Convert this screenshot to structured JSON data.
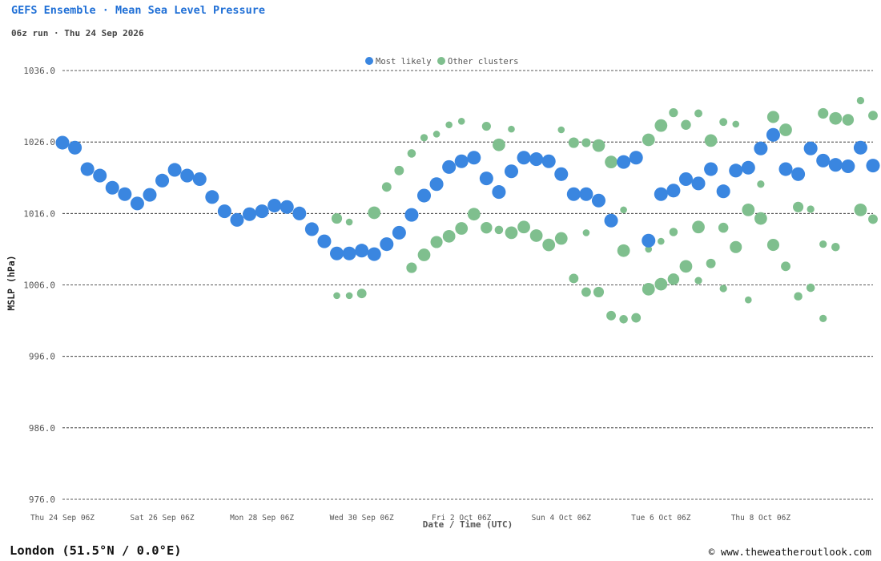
{
  "header": {
    "title": "GEFS Ensemble · Mean Sea Level Pressure",
    "subtitle": "06z run · Thu 24 Sep 2026"
  },
  "footer": {
    "location": "London (51.5°N / 0.0°E)",
    "credit": "© www.theweatheroutlook.com"
  },
  "colors": {
    "most_likely": "#3a86e0",
    "other_clusters": "#7fbf8e",
    "grid": "#222222",
    "axis_text": "#555555"
  },
  "chart_data": {
    "type": "scatter",
    "ylabel": "MSLP (hPa)",
    "xlabel": "Date / Time (UTC)",
    "ylim": [
      976,
      1036
    ],
    "y_ticks": [
      "1036.0",
      "1026.0",
      "1016.0",
      "1006.0",
      "996.0",
      "986.0",
      "976.0"
    ],
    "x_ticks": [
      "Thu 24 Sep 06Z",
      "Sat 26 Sep 06Z",
      "Mon 28 Sep 06Z",
      "Wed 30 Sep 06Z",
      "Fri 2 Oct 06Z",
      "Sun 4 Oct 06Z",
      "Tue 6 Oct 06Z",
      "Thu 8 Oct 06Z"
    ],
    "grid": "horizontal dashed",
    "legend": {
      "position": "top-center",
      "entries": [
        "Most likely",
        "Other clusters"
      ]
    },
    "note": "x values are forecast lead time in hours from Thu 24 Sep 06Z; size is relative cluster weight (0-1)",
    "series": [
      {
        "name": "Most likely",
        "points": [
          [
            0,
            1025.9,
            0.85
          ],
          [
            6,
            1025.2,
            0.85
          ],
          [
            12,
            1022.2,
            0.85
          ],
          [
            18,
            1021.3,
            0.85
          ],
          [
            24,
            1019.6,
            0.85
          ],
          [
            30,
            1018.7,
            0.85
          ],
          [
            36,
            1017.4,
            0.85
          ],
          [
            42,
            1018.6,
            0.85
          ],
          [
            48,
            1020.6,
            0.85
          ],
          [
            54,
            1022.1,
            0.85
          ],
          [
            60,
            1021.3,
            0.85
          ],
          [
            66,
            1020.8,
            0.85
          ],
          [
            72,
            1018.3,
            0.85
          ],
          [
            78,
            1016.3,
            0.85
          ],
          [
            84,
            1015.1,
            0.85
          ],
          [
            90,
            1015.9,
            0.85
          ],
          [
            96,
            1016.3,
            0.85
          ],
          [
            102,
            1017.1,
            0.85
          ],
          [
            108,
            1016.9,
            0.85
          ],
          [
            114,
            1016.0,
            0.85
          ],
          [
            120,
            1013.8,
            0.85
          ],
          [
            126,
            1012.1,
            0.85
          ],
          [
            132,
            1010.4,
            0.85
          ],
          [
            138,
            1010.4,
            0.85
          ],
          [
            144,
            1010.8,
            0.85
          ],
          [
            150,
            1010.3,
            0.85
          ],
          [
            156,
            1011.7,
            0.85
          ],
          [
            162,
            1013.3,
            0.85
          ],
          [
            168,
            1015.8,
            0.85
          ],
          [
            174,
            1018.5,
            0.85
          ],
          [
            180,
            1020.1,
            0.85
          ],
          [
            186,
            1022.5,
            0.85
          ],
          [
            192,
            1023.3,
            0.85
          ],
          [
            198,
            1023.8,
            0.85
          ],
          [
            204,
            1020.9,
            0.85
          ],
          [
            210,
            1019.0,
            0.85
          ],
          [
            216,
            1021.9,
            0.85
          ],
          [
            222,
            1023.8,
            0.85
          ],
          [
            228,
            1023.6,
            0.85
          ],
          [
            234,
            1023.3,
            0.85
          ],
          [
            240,
            1021.5,
            0.85
          ],
          [
            246,
            1018.7,
            0.85
          ],
          [
            252,
            1018.7,
            0.85
          ],
          [
            258,
            1017.8,
            0.85
          ],
          [
            264,
            1015.0,
            0.85
          ],
          [
            270,
            1023.2,
            0.85
          ],
          [
            276,
            1023.8,
            0.85
          ],
          [
            282,
            1012.2,
            0.85
          ],
          [
            288,
            1018.7,
            0.85
          ],
          [
            294,
            1019.2,
            0.85
          ],
          [
            300,
            1020.8,
            0.85
          ],
          [
            306,
            1020.2,
            0.85
          ],
          [
            312,
            1022.2,
            0.85
          ],
          [
            318,
            1019.1,
            0.85
          ],
          [
            324,
            1022.0,
            0.85
          ],
          [
            330,
            1022.4,
            0.85
          ],
          [
            336,
            1025.1,
            0.85
          ],
          [
            342,
            1027.0,
            0.85
          ],
          [
            348,
            1022.2,
            0.85
          ],
          [
            354,
            1021.5,
            0.85
          ],
          [
            360,
            1025.1,
            0.85
          ],
          [
            366,
            1023.4,
            0.85
          ],
          [
            372,
            1022.8,
            0.85
          ],
          [
            378,
            1022.6,
            0.85
          ],
          [
            384,
            1025.2,
            0.85
          ],
          [
            390,
            1022.7,
            0.85
          ]
        ]
      },
      {
        "name": "Other clusters",
        "points": [
          [
            132,
            1015.3,
            0.55
          ],
          [
            138,
            1014.8,
            0.2
          ],
          [
            132,
            1004.5,
            0.2
          ],
          [
            138,
            1004.5,
            0.2
          ],
          [
            144,
            1004.8,
            0.45
          ],
          [
            150,
            1016.1,
            0.75
          ],
          [
            156,
            1019.7,
            0.45
          ],
          [
            162,
            1022.0,
            0.45
          ],
          [
            168,
            1024.4,
            0.35
          ],
          [
            168,
            1008.4,
            0.55
          ],
          [
            174,
            1026.6,
            0.25
          ],
          [
            174,
            1010.2,
            0.75
          ],
          [
            180,
            1027.1,
            0.2
          ],
          [
            180,
            1012.0,
            0.7
          ],
          [
            186,
            1028.4,
            0.2
          ],
          [
            186,
            1012.8,
            0.75
          ],
          [
            192,
            1028.9,
            0.2
          ],
          [
            192,
            1013.9,
            0.75
          ],
          [
            198,
            1015.9,
            0.75
          ],
          [
            204,
            1028.2,
            0.4
          ],
          [
            204,
            1014.0,
            0.65
          ],
          [
            210,
            1025.6,
            0.75
          ],
          [
            210,
            1013.7,
            0.35
          ],
          [
            216,
            1027.8,
            0.2
          ],
          [
            216,
            1013.3,
            0.75
          ],
          [
            222,
            1014.1,
            0.75
          ],
          [
            228,
            1012.9,
            0.75
          ],
          [
            234,
            1011.6,
            0.75
          ],
          [
            240,
            1012.5,
            0.75
          ],
          [
            240,
            1027.7,
            0.2
          ],
          [
            246,
            1025.9,
            0.55
          ],
          [
            246,
            1006.9,
            0.45
          ],
          [
            252,
            1025.9,
            0.4
          ],
          [
            252,
            1013.3,
            0.2
          ],
          [
            252,
            1005.0,
            0.45
          ],
          [
            258,
            1025.5,
            0.75
          ],
          [
            258,
            1005.0,
            0.55
          ],
          [
            264,
            1023.2,
            0.75
          ],
          [
            264,
            1001.7,
            0.45
          ],
          [
            270,
            1016.5,
            0.2
          ],
          [
            270,
            1010.8,
            0.75
          ],
          [
            270,
            1001.2,
            0.35
          ],
          [
            276,
            1001.4,
            0.45
          ],
          [
            282,
            1026.3,
            0.75
          ],
          [
            282,
            1011.0,
            0.2
          ],
          [
            282,
            1005.4,
            0.75
          ],
          [
            288,
            1028.3,
            0.75
          ],
          [
            288,
            1012.1,
            0.2
          ],
          [
            288,
            1006.1,
            0.75
          ],
          [
            294,
            1030.1,
            0.4
          ],
          [
            294,
            1013.4,
            0.35
          ],
          [
            294,
            1006.8,
            0.65
          ],
          [
            300,
            1028.4,
            0.5
          ],
          [
            300,
            1008.6,
            0.75
          ],
          [
            306,
            1030.0,
            0.3
          ],
          [
            306,
            1014.1,
            0.75
          ],
          [
            306,
            1006.6,
            0.25
          ],
          [
            312,
            1026.2,
            0.75
          ],
          [
            312,
            1009.0,
            0.45
          ],
          [
            318,
            1028.8,
            0.3
          ],
          [
            318,
            1005.5,
            0.25
          ],
          [
            318,
            1014.0,
            0.5
          ],
          [
            324,
            1028.5,
            0.2
          ],
          [
            324,
            1011.3,
            0.7
          ],
          [
            330,
            1016.5,
            0.75
          ],
          [
            330,
            1003.9,
            0.2
          ],
          [
            336,
            1020.1,
            0.25
          ],
          [
            336,
            1015.3,
            0.75
          ],
          [
            342,
            1029.5,
            0.7
          ],
          [
            342,
            1011.6,
            0.7
          ],
          [
            348,
            1027.7,
            0.75
          ],
          [
            348,
            1008.6,
            0.45
          ],
          [
            354,
            1016.9,
            0.55
          ],
          [
            354,
            1004.4,
            0.35
          ],
          [
            360,
            1016.6,
            0.25
          ],
          [
            360,
            1005.6,
            0.35
          ],
          [
            366,
            1030.0,
            0.55
          ],
          [
            366,
            1011.7,
            0.25
          ],
          [
            366,
            1001.3,
            0.25
          ],
          [
            372,
            1029.3,
            0.75
          ],
          [
            372,
            1011.3,
            0.35
          ],
          [
            378,
            1029.1,
            0.65
          ],
          [
            384,
            1031.8,
            0.25
          ],
          [
            384,
            1016.5,
            0.75
          ],
          [
            390,
            1029.7,
            0.45
          ],
          [
            390,
            1015.2,
            0.45
          ]
        ]
      }
    ]
  }
}
